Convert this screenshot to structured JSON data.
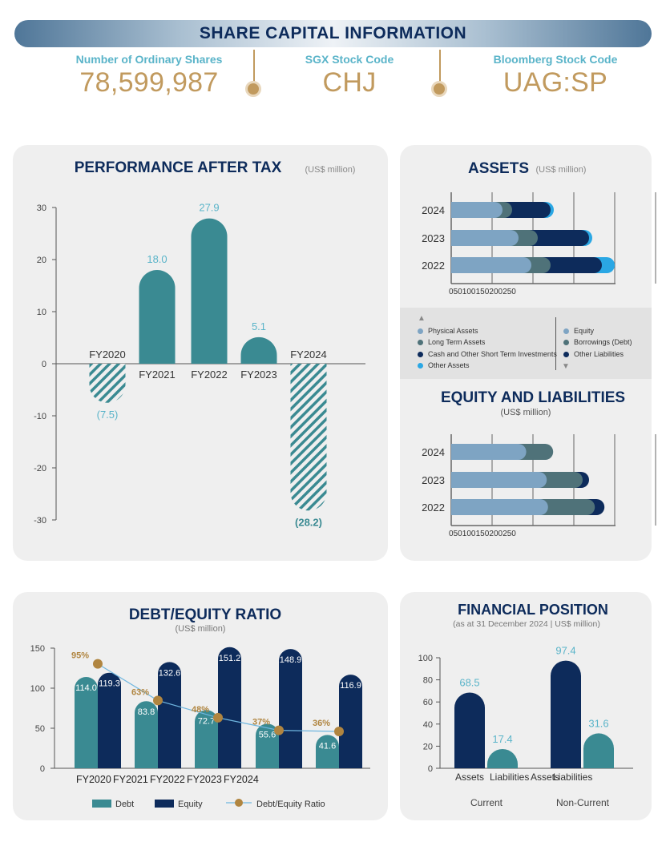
{
  "header": {
    "title": "SHARE CAPITAL INFORMATION",
    "info": [
      {
        "label": "Number of Ordinary Shares",
        "value": "78,599,987"
      },
      {
        "label": "SGX Stock Code",
        "value": "CHJ"
      },
      {
        "label": "Bloomberg Stock Code",
        "value": "UAG:SP"
      }
    ]
  },
  "performance": {
    "title": "PERFORMANCE AFTER TAX",
    "unit": "(US$ million)"
  },
  "assets": {
    "title": "ASSETS",
    "unit": "(US$ million)"
  },
  "equity_liab": {
    "title": "EQUITY AND LIABILITIES",
    "unit": "(US$ million)"
  },
  "debt_equity": {
    "title": "DEBT/EQUITY RATIO",
    "unit": "(US$ million)"
  },
  "fin_pos": {
    "title": "FINANCIAL POSITION",
    "unit": "(as at 31 December 2024 | US$ million)"
  },
  "legend_stack": {
    "left": [
      "Physical Assets",
      "Long Term Assets",
      "Cash and Other Short Term Investments",
      "Other Assets"
    ],
    "right": [
      "Equity",
      "Borrowings (Debt)",
      "Other Liabilities"
    ]
  },
  "chart_data": [
    {
      "type": "bar",
      "title": "PERFORMANCE AFTER TAX",
      "categories": [
        "FY2020",
        "FY2021",
        "FY2022",
        "FY2023",
        "FY2024"
      ],
      "values": [
        -7.5,
        18.0,
        27.9,
        5.1,
        -28.2
      ],
      "value_labels": [
        "(7.5)",
        "18.0",
        "27.9",
        "5.1",
        "(28.2)"
      ],
      "ylim": [
        -30,
        30
      ],
      "yticks": [
        30,
        20,
        10,
        0,
        -10,
        -20,
        -30
      ],
      "colors": {
        "positive": "#3a8a92",
        "negative_hatch": "#3a8a92"
      }
    },
    {
      "type": "bar",
      "title": "ASSETS",
      "orientation": "horizontal-stacked",
      "categories": [
        "2024",
        "2023",
        "2022"
      ],
      "series": [
        {
          "name": "Physical Assets",
          "values": [
            80,
            105,
            125
          ],
          "color": "#7ea4c3"
        },
        {
          "name": "Long Term Assets",
          "values": [
            15,
            30,
            30
          ],
          "color": "#4f7279"
        },
        {
          "name": "Cash and Other Short Term Investments",
          "values": [
            60,
            80,
            80
          ],
          "color": "#0d2b5b"
        },
        {
          "name": "Other Assets",
          "values": [
            5,
            5,
            20
          ],
          "color": "#2aa7e4"
        }
      ],
      "xticks": [
        "0",
        "50",
        "100",
        "150",
        "200",
        "250"
      ],
      "xlim": [
        0,
        250
      ]
    },
    {
      "type": "bar",
      "title": "EQUITY AND LIABILITIES",
      "orientation": "horizontal-stacked",
      "categories": [
        "2024",
        "2023",
        "2022"
      ],
      "series": [
        {
          "name": "Equity",
          "values": [
            117,
            149,
            151
          ],
          "color": "#7ea4c3"
        },
        {
          "name": "Borrowings (Debt)",
          "values": [
            42,
            56,
            73
          ],
          "color": "#4f7279"
        },
        {
          "name": "Other Liabilities",
          "values": [
            0,
            10,
            15
          ],
          "color": "#0d2b5b"
        }
      ],
      "xticks": [
        "0",
        "50",
        "100",
        "150",
        "200",
        "250"
      ],
      "xlim": [
        0,
        250
      ]
    },
    {
      "type": "bar",
      "title": "DEBT/EQUITY RATIO",
      "categories": [
        "FY2020",
        "FY2021",
        "FY2022",
        "FY2023",
        "FY2024"
      ],
      "series": [
        {
          "name": "Debt",
          "values": [
            114.0,
            83.8,
            72.7,
            55.6,
            41.6
          ],
          "labels": [
            "114.0",
            "83.8",
            "72.7",
            "55.6",
            "41.6"
          ],
          "color": "#3a8a92"
        },
        {
          "name": "Equity",
          "values": [
            119.3,
            132.6,
            151.2,
            148.9,
            116.9
          ],
          "labels": [
            "119.3",
            "132.6",
            "151.2",
            "148.9",
            "116.9"
          ],
          "color": "#0d2b5b"
        }
      ],
      "ratio": {
        "name": "Debt/Equity Ratio",
        "values": [
          95,
          63,
          48,
          37,
          36
        ],
        "labels": [
          "95%",
          "63%",
          "48%",
          "37%",
          "36%"
        ],
        "color": "#b08540"
      },
      "ylim": [
        0,
        150
      ],
      "yticks": [
        150,
        100,
        50,
        0
      ]
    },
    {
      "type": "bar",
      "title": "FINANCIAL POSITION",
      "categories": [
        "Assets",
        "Liabilities",
        "Assets",
        "Liabilities"
      ],
      "groups": [
        "Current",
        "Non-Current"
      ],
      "values": [
        68.5,
        17.4,
        97.4,
        31.6
      ],
      "value_labels": [
        "68.5",
        "17.4",
        "97.4",
        "31.6"
      ],
      "colors": [
        "#0d2b5b",
        "#3a8a92",
        "#0d2b5b",
        "#3a8a92"
      ],
      "ylim": [
        0,
        100
      ],
      "yticks": [
        100,
        80,
        60,
        40,
        20,
        0
      ]
    }
  ]
}
